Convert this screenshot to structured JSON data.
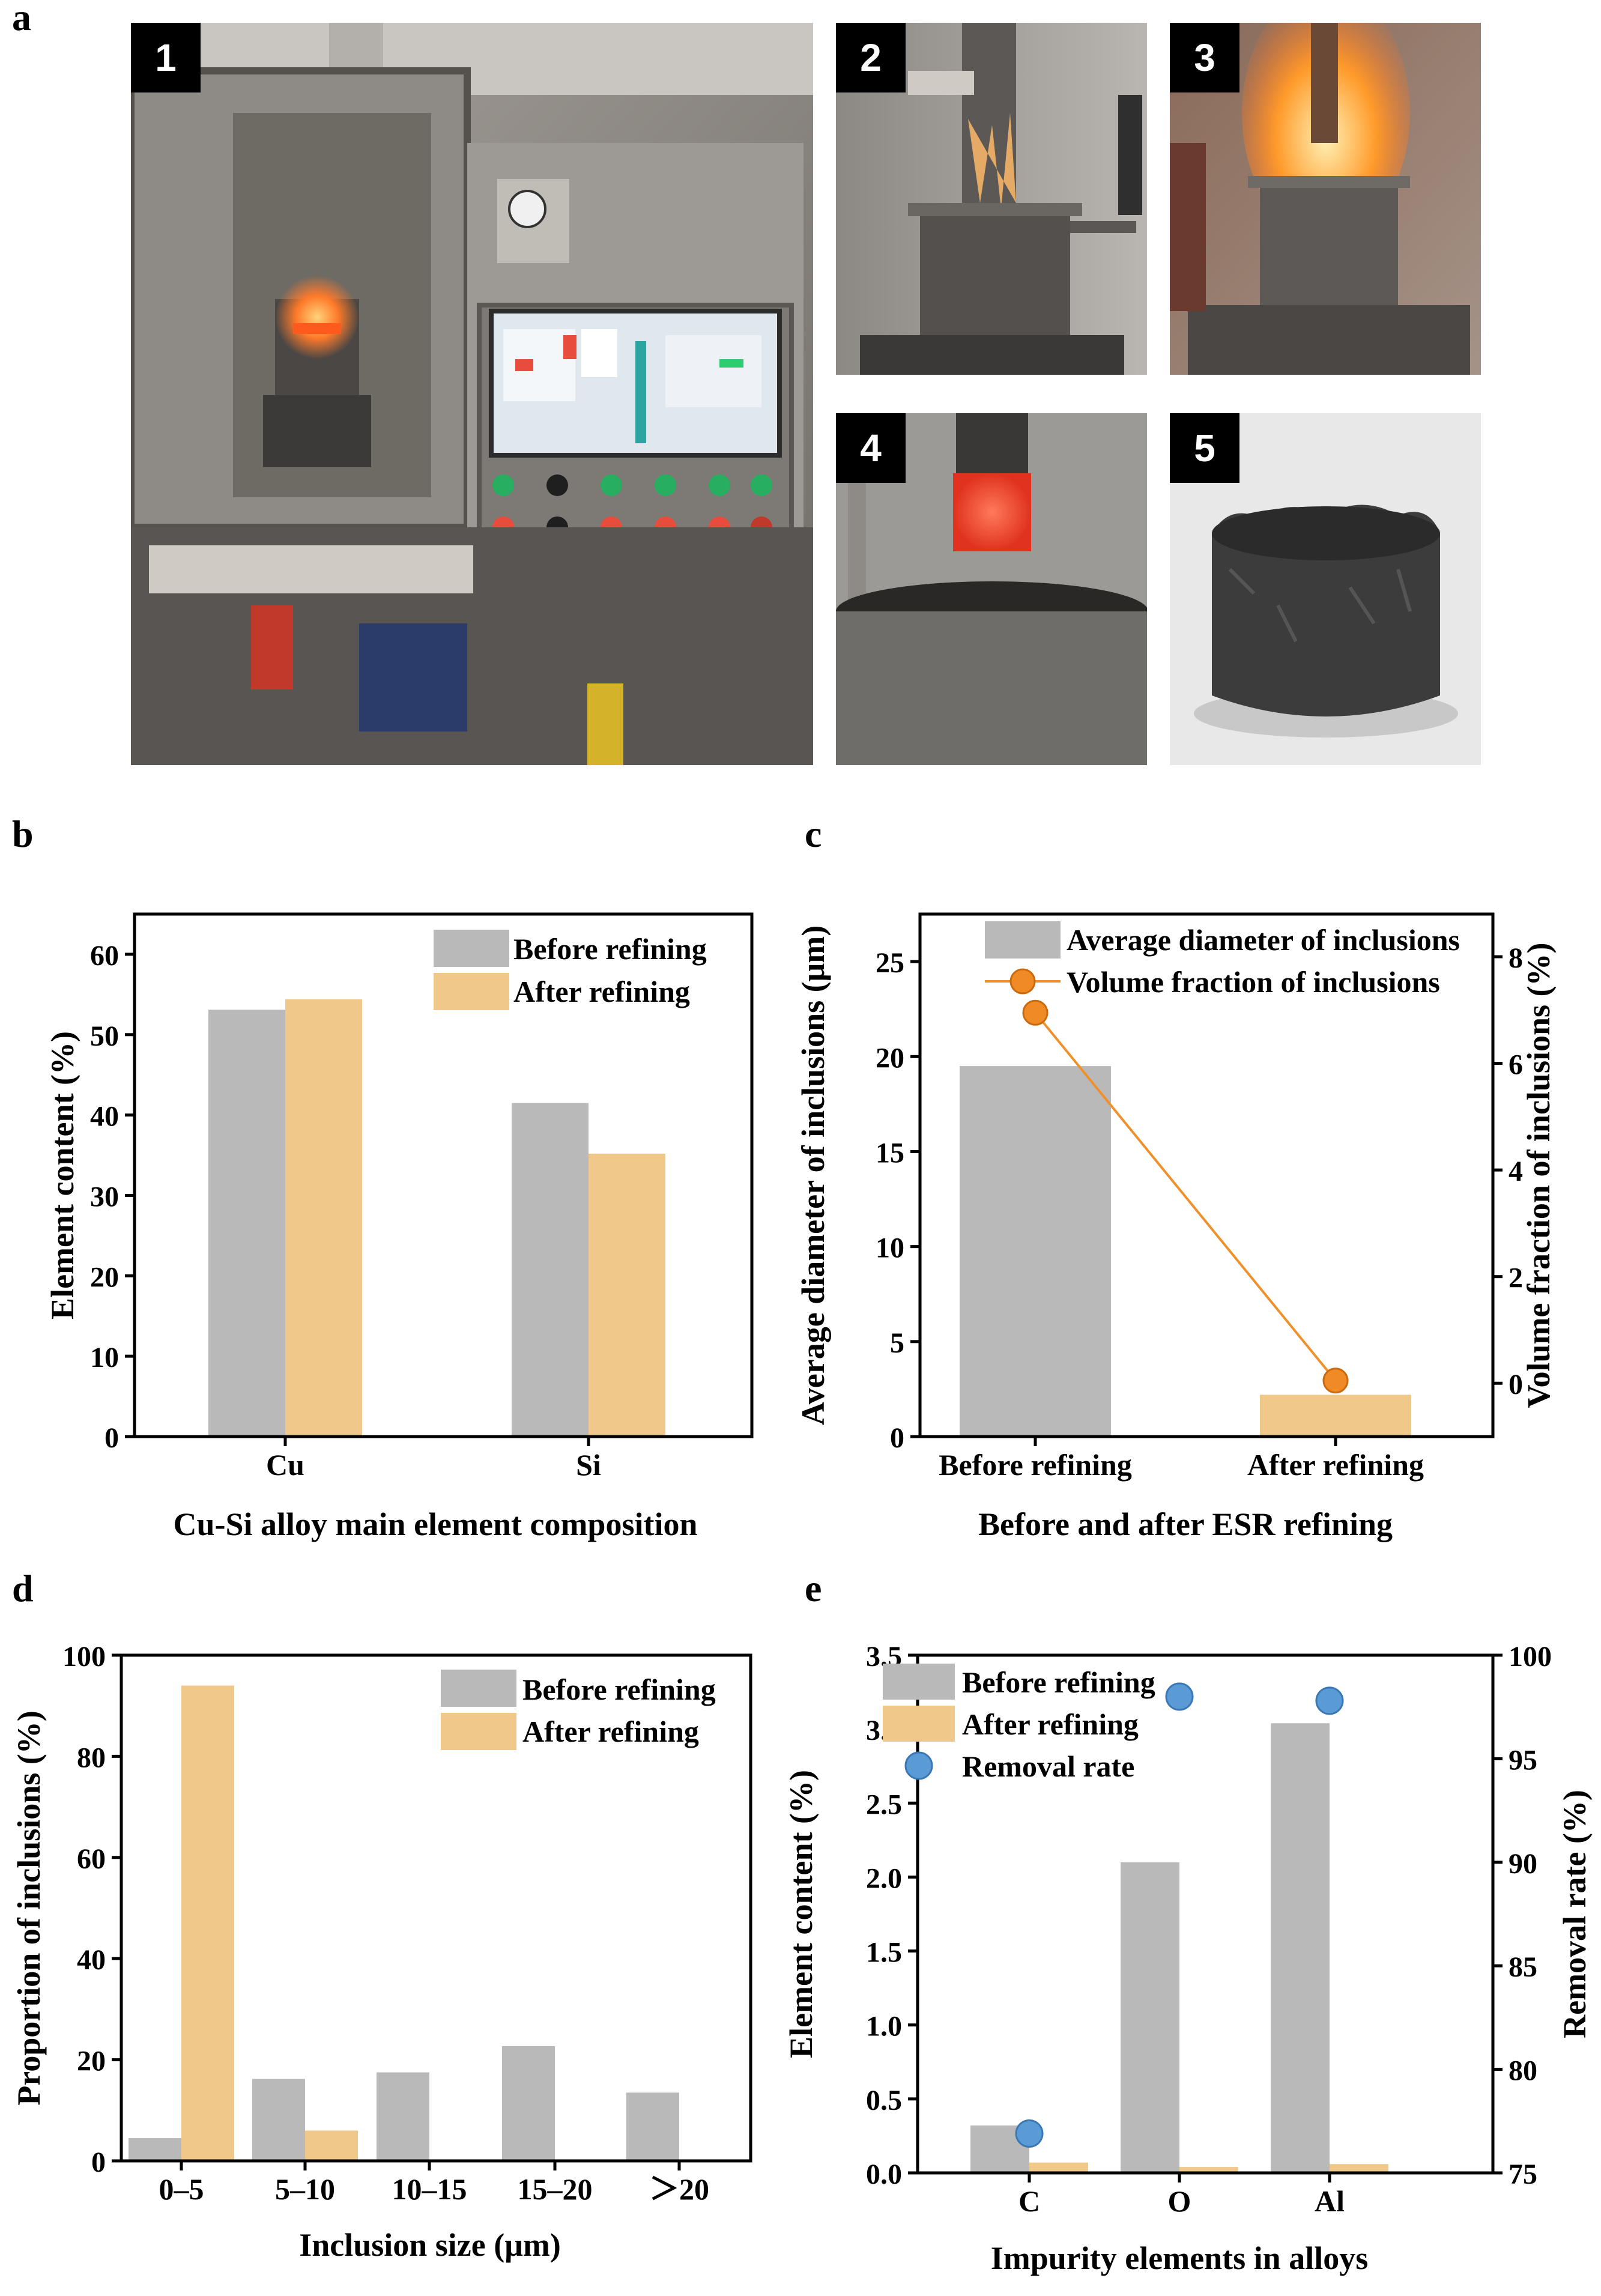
{
  "panel_letters": {
    "a": "a",
    "b": "b",
    "c": "c",
    "d": "d",
    "e": "e"
  },
  "photos": [
    {
      "number": "1"
    },
    {
      "number": "2"
    },
    {
      "number": "3"
    },
    {
      "number": "4"
    },
    {
      "number": "5"
    }
  ],
  "colors": {
    "before": "#b9b9b9",
    "after": "#f0c88a",
    "line": "#f0902a",
    "marker_orange": "#f08a24",
    "marker_blue": "#5b9bd5"
  },
  "chart_data": [
    {
      "id": "b",
      "type": "bar",
      "categories": [
        "Cu",
        "Si"
      ],
      "series": [
        {
          "name": "Before refining",
          "values": [
            53.1,
            41.5
          ]
        },
        {
          "name": "After refining",
          "values": [
            54.4,
            35.2
          ]
        }
      ],
      "xlabel": "Cu-Si alloy main element composition",
      "ylabel": "Element content (%)",
      "ylim": [
        0,
        65
      ],
      "yticks": [
        "0",
        "10",
        "20",
        "30",
        "40",
        "50",
        "60"
      ],
      "legend": "top-right"
    },
    {
      "id": "c",
      "type": "bar+line",
      "categories": [
        "Before refining",
        "After refining"
      ],
      "series": [
        {
          "name": "Average diameter of inclusions",
          "type": "bar",
          "axis": "left",
          "values": [
            19.5,
            2.2
          ]
        },
        {
          "name": "Volume fraction of inclusions",
          "type": "line",
          "axis": "right",
          "values": [
            6.95,
            0.05
          ]
        }
      ],
      "xlabel": "Before and after ESR refining",
      "ylabel": "Average diameter of inclusions (μm)",
      "y2label": "Volume fraction of inclusions (%)",
      "ylim": [
        0,
        27.5
      ],
      "y2lim": [
        -1,
        8.8
      ],
      "yticks": [
        "0",
        "5",
        "10",
        "15",
        "20",
        "25"
      ],
      "y2ticks": [
        "0",
        "2",
        "4",
        "6",
        "8"
      ],
      "legend": "top-right"
    },
    {
      "id": "d",
      "type": "bar",
      "categories": [
        "0–5",
        "5–10",
        "10–15",
        "15–20",
        "＞20"
      ],
      "series": [
        {
          "name": "Before refining",
          "values": [
            4.5,
            16.2,
            17.5,
            22.7,
            13.5
          ]
        },
        {
          "name": "After refining",
          "values": [
            94,
            6,
            0,
            0,
            0
          ]
        }
      ],
      "xlabel": "Inclusion size (μm)",
      "ylabel": "Proportion of inclusions (%)",
      "ylim": [
        0,
        100
      ],
      "yticks": [
        "0",
        "20",
        "40",
        "60",
        "80",
        "100"
      ],
      "legend": "top-right"
    },
    {
      "id": "e",
      "type": "bar+scatter",
      "categories": [
        "C",
        "O",
        "Al"
      ],
      "series": [
        {
          "name": "Before refining",
          "type": "bar",
          "axis": "left",
          "values": [
            0.32,
            2.1,
            3.04
          ]
        },
        {
          "name": "After refining",
          "type": "bar",
          "axis": "left",
          "values": [
            0.07,
            0.04,
            0.06
          ]
        },
        {
          "name": "Removal rate",
          "type": "scatter",
          "axis": "right",
          "values": [
            76.9,
            98.0,
            97.8
          ]
        }
      ],
      "xlabel": "Impurity elements in alloys",
      "ylabel": "Element content (%)",
      "y2label": "Removal rate (%)",
      "ylim": [
        0,
        3.5
      ],
      "y2lim": [
        75,
        100
      ],
      "yticks": [
        "0.0",
        "0.5",
        "1.0",
        "1.5",
        "2.0",
        "2.5",
        "3.0",
        "3.5"
      ],
      "y2ticks": [
        "75",
        "80",
        "85",
        "90",
        "95",
        "100"
      ],
      "legend": "top-left"
    }
  ]
}
